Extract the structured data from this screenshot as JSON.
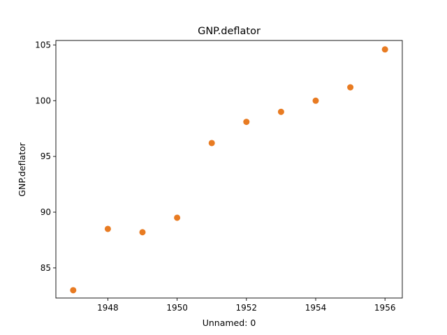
{
  "chart_data": {
    "type": "scatter",
    "title": "GNP.deflator",
    "xlabel": "Unnamed: 0",
    "ylabel": "GNP.deflator",
    "x": [
      1947,
      1948,
      1949,
      1950,
      1951,
      1952,
      1953,
      1954,
      1955,
      1956
    ],
    "series": [
      {
        "values": [
          83.0,
          88.5,
          88.2,
          89.5,
          96.2,
          98.1,
          99.0,
          100.0,
          101.2,
          104.6
        ],
        "color": "#e87b22"
      }
    ],
    "xlim": [
      1946.5,
      1956.5
    ],
    "ylim": [
      82.3,
      105.4
    ],
    "xticks": [
      1948,
      1950,
      1952,
      1954,
      1956
    ],
    "yticks": [
      85,
      90,
      95,
      100,
      105
    ],
    "grid": false,
    "legend": "none"
  }
}
